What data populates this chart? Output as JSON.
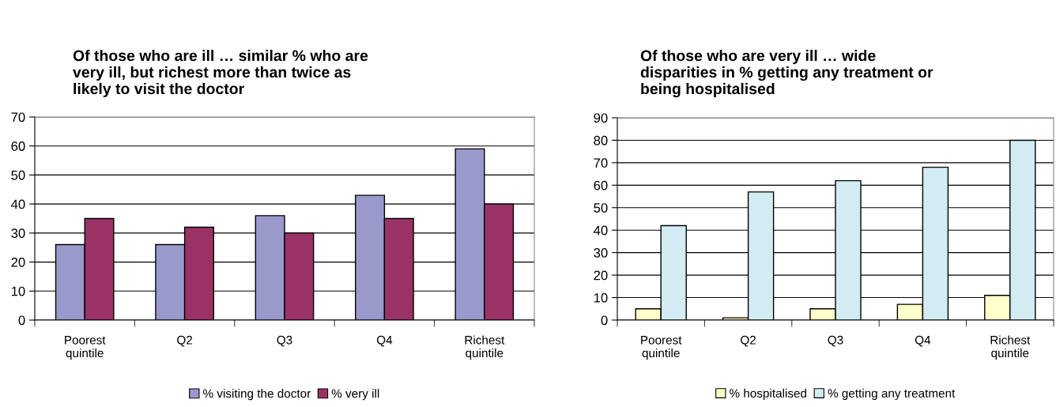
{
  "chart_data": [
    {
      "type": "bar",
      "title": "Of those who are ill … similar % who are\nvery ill, but richest more than twice as\nlikely to visit the doctor",
      "categories": [
        "Poorest\nquintile",
        "Q2",
        "Q3",
        "Q4",
        "Richest\nquintile"
      ],
      "series": [
        {
          "name": "% visiting the doctor",
          "color": "#9999cc",
          "values": [
            26,
            26,
            36,
            43,
            59
          ]
        },
        {
          "name": "% very ill",
          "color": "#993366",
          "values": [
            35,
            32,
            30,
            35,
            40
          ]
        }
      ],
      "ylim": [
        0,
        70
      ],
      "yticks": [
        0,
        10,
        20,
        30,
        40,
        50,
        60,
        70
      ],
      "grid": "y",
      "legend": "bottom"
    },
    {
      "type": "bar",
      "title": "Of those who are very ill … wide\ndisparities in % getting any treatment or\nbeing hospitalised",
      "categories": [
        "Poorest\nquintile",
        "Q2",
        "Q3",
        "Q4",
        "Richest\nquintile"
      ],
      "series": [
        {
          "name": "% hospitalised",
          "color": "#ffffcc",
          "values": [
            5,
            1,
            5,
            7,
            11
          ]
        },
        {
          "name": "% getting any treatment",
          "color": "#d3ecf3",
          "values": [
            42,
            57,
            62,
            68,
            80
          ]
        }
      ],
      "ylim": [
        0,
        90
      ],
      "yticks": [
        0,
        10,
        20,
        30,
        40,
        50,
        60,
        70,
        80,
        90
      ],
      "grid": "y",
      "legend": "bottom"
    }
  ]
}
